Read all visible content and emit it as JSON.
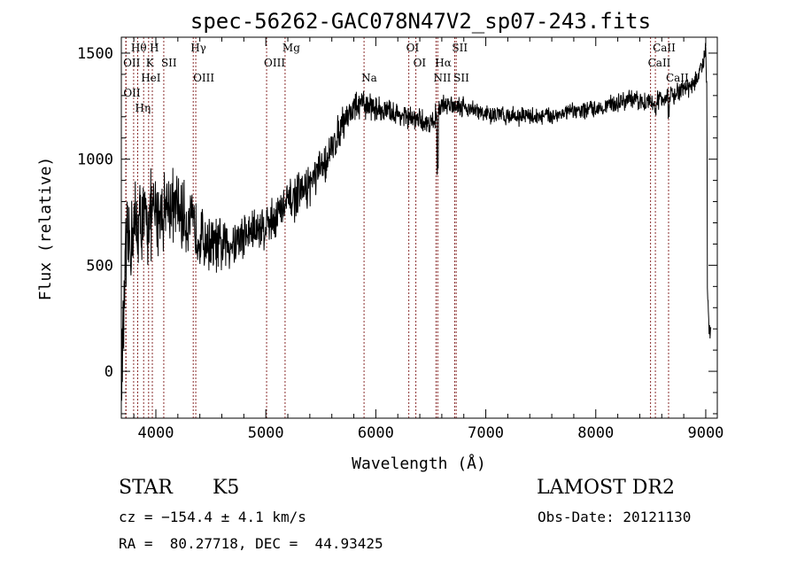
{
  "chart_data": {
    "type": "line",
    "title": "spec-56262-GAC078N47V2_sp07-243.fits",
    "xlabel": "Wavelength (Å)",
    "ylabel": "Flux (relative)",
    "xlim": [
      3686,
      9105
    ],
    "ylim": [
      -221,
      1575
    ],
    "xticks": [
      4000,
      5000,
      6000,
      7000,
      8000,
      9000
    ],
    "yticks": [
      0,
      500,
      1000,
      1500
    ],
    "grid": false,
    "series": [
      {
        "name": "flux",
        "continuum": [
          [
            3700,
            80
          ],
          [
            3720,
            450
          ],
          [
            3760,
            620
          ],
          [
            3800,
            680
          ],
          [
            3900,
            700
          ],
          [
            4000,
            740
          ],
          [
            4100,
            790
          ],
          [
            4200,
            760
          ],
          [
            4300,
            700
          ],
          [
            4400,
            640
          ],
          [
            4500,
            600
          ],
          [
            4600,
            590
          ],
          [
            4700,
            610
          ],
          [
            4800,
            640
          ],
          [
            5000,
            690
          ],
          [
            5100,
            740
          ],
          [
            5200,
            790
          ],
          [
            5300,
            830
          ],
          [
            5400,
            880
          ],
          [
            5500,
            950
          ],
          [
            5600,
            1040
          ],
          [
            5700,
            1180
          ],
          [
            5800,
            1240
          ],
          [
            5900,
            1260
          ],
          [
            6000,
            1240
          ],
          [
            6200,
            1210
          ],
          [
            6400,
            1180
          ],
          [
            6500,
            1170
          ],
          [
            6600,
            1250
          ],
          [
            6700,
            1260
          ],
          [
            6800,
            1250
          ],
          [
            7000,
            1210
          ],
          [
            7500,
            1200
          ],
          [
            8000,
            1240
          ],
          [
            8300,
            1280
          ],
          [
            8500,
            1270
          ],
          [
            8700,
            1300
          ],
          [
            8900,
            1360
          ],
          [
            8980,
            1450
          ],
          [
            9000,
            1500
          ],
          [
            9010,
            1300
          ],
          [
            9015,
            400
          ],
          [
            9030,
            200
          ]
        ],
        "noise_amplitude": [
          [
            3700,
            250
          ],
          [
            4000,
            200
          ],
          [
            4500,
            130
          ],
          [
            5000,
            110
          ],
          [
            5600,
            90
          ],
          [
            6000,
            60
          ],
          [
            7000,
            45
          ],
          [
            8000,
            40
          ],
          [
            9000,
            50
          ]
        ]
      }
    ],
    "lines": [
      {
        "label": "Hθ",
        "wavelength": 3798
      },
      {
        "label": "K",
        "wavelength": 3934
      },
      {
        "label": "Hγ",
        "wavelength": 4340
      },
      {
        "label": "Mg",
        "wavelength": 5175
      },
      {
        "label": "OI",
        "wavelength": 6300
      },
      {
        "label": "SII",
        "wavelength": 6717
      },
      {
        "label": "CaII",
        "wavelength": 8542
      },
      {
        "label": "OII",
        "wavelength": 3727
      },
      {
        "label": "HeI",
        "wavelength": 3889
      },
      {
        "label": "SII",
        "wavelength": 4072
      },
      {
        "label": "OIII",
        "wavelength": 5007
      },
      {
        "label": "OI",
        "wavelength": 6364
      },
      {
        "label": "Hα",
        "wavelength": 6563
      },
      {
        "label": "CaII",
        "wavelength": 8498
      },
      {
        "label": "OII",
        "wavelength": 3729
      },
      {
        "label": "Hη",
        "wavelength": 3835
      },
      {
        "label": "H",
        "wavelength": 3968
      },
      {
        "label": "OIII",
        "wavelength": 4363
      },
      {
        "label": "Na",
        "wavelength": 5893
      },
      {
        "label": "NII",
        "wavelength": 6548
      },
      {
        "label": "SII",
        "wavelength": 6731
      },
      {
        "label": "CaII",
        "wavelength": 8662
      }
    ]
  },
  "info": {
    "class": "STAR",
    "subclass": "K5",
    "survey": "LAMOST DR2",
    "cz": "cz = −154.4 ± 4.1 km/s",
    "obs_date": "Obs-Date: 20121130",
    "coords": "RA =  80.27718, DEC =  44.93425"
  },
  "colors": {
    "line_marker": "#8b2f2f",
    "spectrum": "#000000"
  }
}
